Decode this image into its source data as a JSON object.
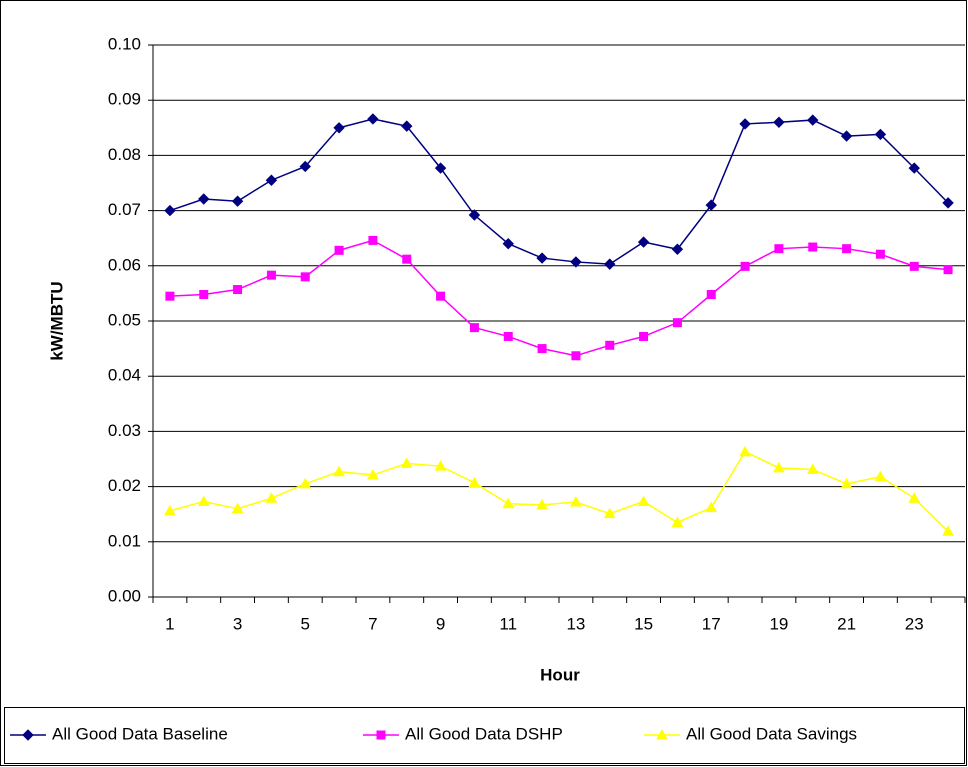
{
  "chart_data": {
    "type": "line",
    "y_label": "kW/MBTU",
    "x_label": "Hour",
    "categories": [
      1,
      null,
      3,
      null,
      5,
      null,
      7,
      null,
      9,
      null,
      11,
      null,
      13,
      null,
      15,
      null,
      17,
      null,
      19,
      null,
      21,
      null,
      23,
      null
    ],
    "series": [
      {
        "name": "All Good Data Baseline",
        "color": "#000080",
        "marker": "diamond",
        "values": [
          0.07,
          0.0721,
          0.0717,
          0.0755,
          0.078,
          0.085,
          0.0866,
          0.0853,
          0.0777,
          0.0692,
          0.064,
          0.0614,
          0.0607,
          0.0603,
          0.0643,
          0.063,
          0.071,
          0.0857,
          0.086,
          0.0864,
          0.0835,
          0.0838,
          0.0777,
          0.0714
        ]
      },
      {
        "name": "All Good Data DSHP",
        "color": "#ff00ff",
        "marker": "square",
        "values": [
          0.0545,
          0.0548,
          0.0557,
          0.0583,
          0.058,
          0.0628,
          0.0646,
          0.0612,
          0.0545,
          0.0488,
          0.0472,
          0.045,
          0.0437,
          0.0456,
          0.0472,
          0.0497,
          0.0548,
          0.0599,
          0.0631,
          0.0634,
          0.0631,
          0.0621,
          0.0599,
          0.0593
        ]
      },
      {
        "name": "All Good Data Savings",
        "color": "#ffff00",
        "marker": "triangle",
        "values": [
          0.0156,
          0.0173,
          0.016,
          0.0179,
          0.0205,
          0.0227,
          0.0221,
          0.0242,
          0.0237,
          0.0207,
          0.0169,
          0.0167,
          0.0172,
          0.0151,
          0.0173,
          0.0135,
          0.0162,
          0.0263,
          0.0234,
          0.0231,
          0.0205,
          0.0218,
          0.0179,
          0.0119
        ]
      }
    ],
    "ylim": [
      0,
      0.1
    ],
    "yticks": [
      {
        "value": 0,
        "label": "0.00"
      },
      0.01,
      0.02,
      0.03,
      0.04,
      0.05,
      0.06,
      0.07,
      0.08,
      0.09,
      {
        "value": 0.1,
        "label": "0.10"
      }
    ],
    "grid": true,
    "legend": "bottom"
  }
}
